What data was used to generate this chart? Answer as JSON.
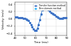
{
  "title": "",
  "xlabel": "Time (ms)",
  "ylabel": "Velocity (m/s)",
  "legend_labels": [
    "Transfer function method",
    "Time-domain method"
  ],
  "line_colors": [
    "#4472c4",
    "#00aaff"
  ],
  "line_styles": [
    "-",
    "--"
  ],
  "markersize": [
    1.2,
    1.2
  ],
  "linewidth": [
    0.5,
    0.5
  ],
  "xlim": [
    40,
    90
  ],
  "ylim": [
    -0.45,
    0.45
  ],
  "xticks": [
    40,
    50,
    60,
    70,
    80,
    90
  ],
  "yticks": [
    -0.4,
    -0.2,
    0.0,
    0.2,
    0.4
  ],
  "grid": true,
  "figsize": [
    1.0,
    0.65
  ],
  "dpi": 100,
  "bg_color": "#ffffff",
  "legend_fontsize": 2.2,
  "tick_fontsize": 2.8,
  "label_fontsize": 3.0
}
